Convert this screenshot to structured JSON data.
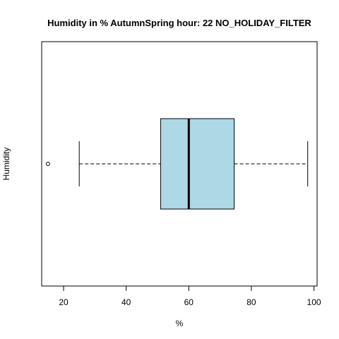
{
  "chart_data": {
    "type": "boxplot",
    "orientation": "horizontal",
    "title": "Humidity in % AutumnSpring hour: 22 NO_HOLIDAY_FILTER",
    "xlabel": "%",
    "ylabel": "Humidity",
    "xlim": [
      13,
      101
    ],
    "x_ticks": [
      20,
      40,
      60,
      80,
      100
    ],
    "box": {
      "whisker_low": 25,
      "q1": 51,
      "median": 60,
      "q3": 74.5,
      "whisker_high": 98,
      "outliers": [
        15
      ]
    },
    "box_fill": "#add8e6",
    "grid": false
  }
}
